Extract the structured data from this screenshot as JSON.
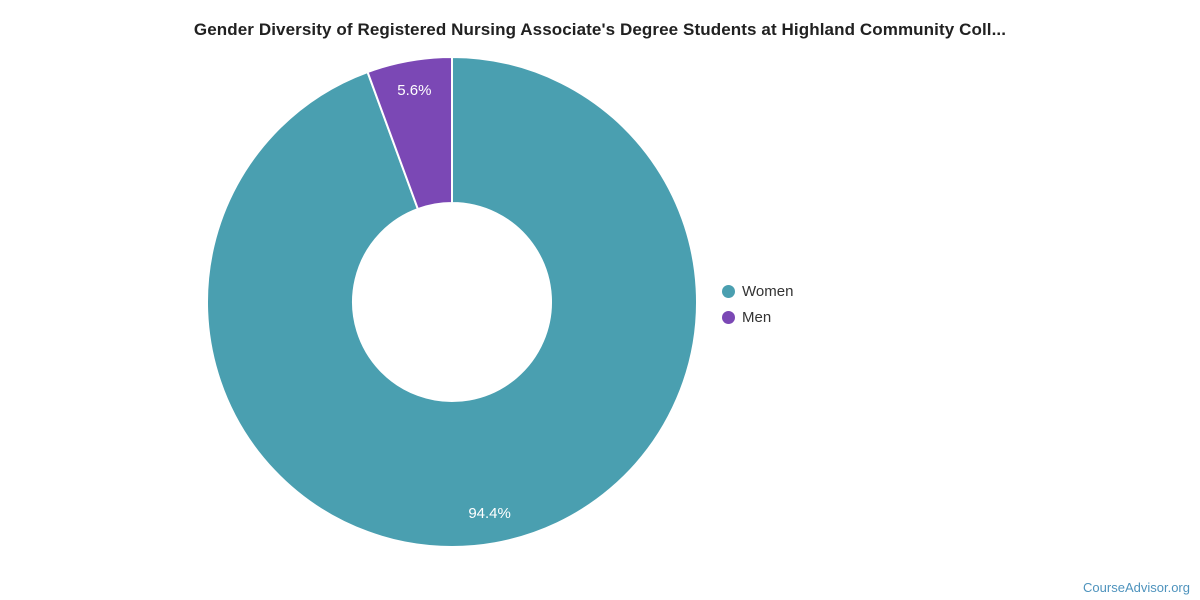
{
  "title": "Gender Diversity of Registered Nursing Associate's Degree Students at Highland Community Coll...",
  "chart_data": {
    "type": "pie",
    "subtype": "donut",
    "title": "Gender Diversity of Registered Nursing Associate's Degree Students at Highland Community Coll...",
    "series": [
      {
        "name": "Women",
        "value": 94.4,
        "label": "94.4%",
        "color": "#4A9FB0"
      },
      {
        "name": "Men",
        "value": 5.6,
        "label": "5.6%",
        "color": "#7B48B5"
      }
    ],
    "start_angle_deg": 0,
    "direction": "clockwise",
    "inner_radius_ratio": 0.4,
    "legend_position": "right-middle",
    "slice_label_format": "percent"
  },
  "legend": {
    "items": [
      {
        "label": "Women",
        "color": "#4A9FB0"
      },
      {
        "label": "Men",
        "color": "#7B48B5"
      }
    ]
  },
  "watermark": {
    "text": "CourseAdvisor.org",
    "color": "#4E93BD"
  },
  "colors": {
    "background": "#ffffff",
    "title": "#212121",
    "legend_text": "#333333",
    "slice_label": "#ffffff",
    "slice_border": "#ffffff"
  }
}
